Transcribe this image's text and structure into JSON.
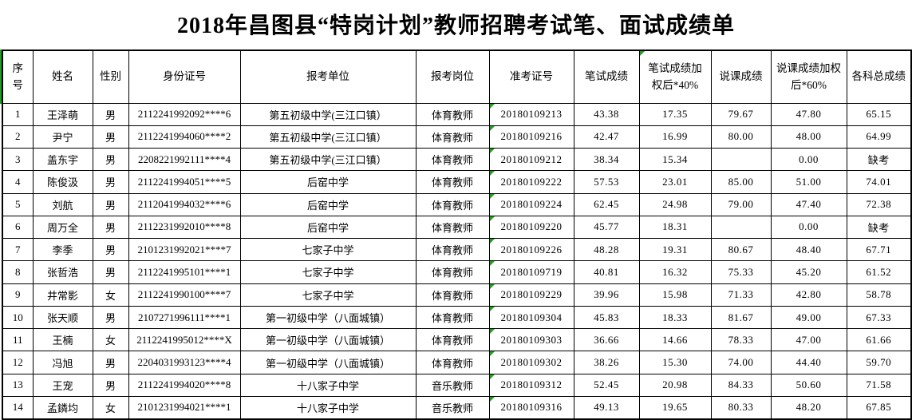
{
  "title": "2018年昌图县“特岗计划”教师招聘考试笔、面试成绩单",
  "colors": {
    "accent_green": "#1fa11f",
    "border": "#000000",
    "background": "#ffffff"
  },
  "table": {
    "columns": [
      {
        "key": "index",
        "label": "序号",
        "triangle": false
      },
      {
        "key": "name",
        "label": "姓名",
        "triangle": false
      },
      {
        "key": "gender",
        "label": "性别",
        "triangle": false
      },
      {
        "key": "id-number",
        "label": "身份证号",
        "triangle": false
      },
      {
        "key": "unit",
        "label": "报考单位",
        "triangle": false
      },
      {
        "key": "position",
        "label": "报考岗位",
        "triangle": false
      },
      {
        "key": "exam-id",
        "label": "准考证号",
        "triangle": false
      },
      {
        "key": "written-score",
        "label": "笔试成绩",
        "triangle": false
      },
      {
        "key": "written-weighted",
        "label": "笔试成绩加权后*40%",
        "triangle": true
      },
      {
        "key": "lecture-score",
        "label": "说课成绩",
        "triangle": false
      },
      {
        "key": "lecture-weighted",
        "label": "说课成绩加权后*60%",
        "triangle": false
      },
      {
        "key": "total-score",
        "label": "各科总成绩",
        "triangle": false
      }
    ],
    "exam_id_column_has_triangles": true,
    "rows": [
      [
        "1",
        "王泽萌",
        "男",
        "2112241992092****6",
        "第五初级中学(三江口镇）",
        "体育教师",
        "20180109213",
        "43.38",
        "17.35",
        "79.67",
        "47.80",
        "65.15"
      ],
      [
        "2",
        "尹宁",
        "男",
        "2112241994060****2",
        "第五初级中学(三江口镇）",
        "体育教师",
        "20180109216",
        "42.47",
        "16.99",
        "80.00",
        "48.00",
        "64.99"
      ],
      [
        "3",
        "盖东宇",
        "男",
        "2208221992111****4",
        "第五初级中学(三江口镇）",
        "体育教师",
        "20180109212",
        "38.34",
        "15.34",
        "",
        "0.00",
        "缺考"
      ],
      [
        "4",
        "陈俊汲",
        "男",
        "2112241994051****5",
        "后窑中学",
        "体育教师",
        "20180109222",
        "57.53",
        "23.01",
        "85.00",
        "51.00",
        "74.01"
      ],
      [
        "5",
        "刘航",
        "男",
        "2112041994032****6",
        "后窑中学",
        "体育教师",
        "20180109224",
        "62.45",
        "24.98",
        "79.00",
        "47.40",
        "72.38"
      ],
      [
        "6",
        "周万全",
        "男",
        "2112231992010****8",
        "后窑中学",
        "体育教师",
        "20180109220",
        "45.77",
        "18.31",
        "",
        "0.00",
        "缺考"
      ],
      [
        "7",
        "李季",
        "男",
        "2101231992021****7",
        "七家子中学",
        "体育教师",
        "20180109226",
        "48.28",
        "19.31",
        "80.67",
        "48.40",
        "67.71"
      ],
      [
        "8",
        "张哲浩",
        "男",
        "2112241995101****1",
        "七家子中学",
        "体育教师",
        "20180109719",
        "40.81",
        "16.32",
        "75.33",
        "45.20",
        "61.52"
      ],
      [
        "9",
        "井常影",
        "女",
        "2112241990100****7",
        "七家子中学",
        "体育教师",
        "20180109229",
        "39.96",
        "15.98",
        "71.33",
        "42.80",
        "58.78"
      ],
      [
        "10",
        "张天顺",
        "男",
        "2107271996111****1",
        "第一初级中学（八面城镇）",
        "体育教师",
        "20180109304",
        "45.83",
        "18.33",
        "81.67",
        "49.00",
        "67.33"
      ],
      [
        "11",
        "王楠",
        "女",
        "2112241995012****X",
        "第一初级中学（八面城镇）",
        "体育教师",
        "20180109303",
        "36.66",
        "14.66",
        "78.33",
        "47.00",
        "61.66"
      ],
      [
        "12",
        "冯旭",
        "男",
        "2204031993123****4",
        "第一初级中学（八面城镇）",
        "体育教师",
        "20180109302",
        "38.26",
        "15.30",
        "74.00",
        "44.40",
        "59.70"
      ],
      [
        "13",
        "王宠",
        "男",
        "2112241994020****8",
        "十八家子中学",
        "音乐教师",
        "20180109312",
        "52.45",
        "20.98",
        "84.33",
        "50.60",
        "71.58"
      ],
      [
        "14",
        "孟鏻均",
        "女",
        "2101231994021****1",
        "十八家子中学",
        "音乐教师",
        "20180109316",
        "49.13",
        "19.65",
        "80.33",
        "48.20",
        "67.85"
      ]
    ]
  }
}
